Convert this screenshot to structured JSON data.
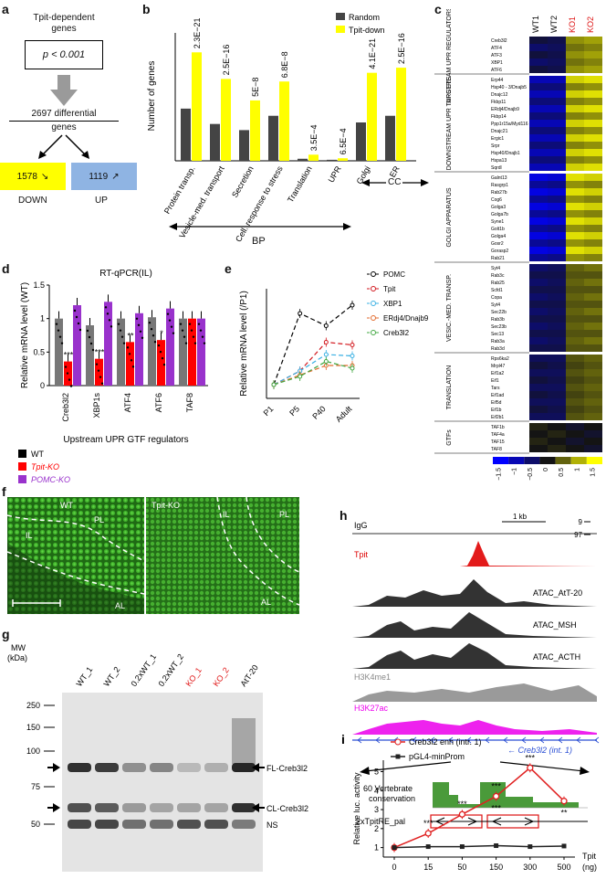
{
  "panel_a": {
    "letter": "a",
    "title_line1": "Tpit-dependent",
    "title_line2": "genes",
    "pvalue": "p < 0.001",
    "count_line1": "2697 differential",
    "count_line2": "genes",
    "down_value": "1578",
    "down_label": "DOWN",
    "up_value": "1119",
    "up_label": "UP",
    "colors": {
      "down": "#ffff00",
      "up": "#8fb4e3"
    }
  },
  "panel_b": {
    "letter": "b",
    "bp_label": "BP",
    "cc_label": "CC",
    "chart_data": {
      "type": "bar",
      "ylabel": "Number of genes",
      "categories": [
        "Protein transp.",
        "Vesicle-med. transport",
        "Secretion",
        "Cell. response to stress",
        "Translation",
        "UPR",
        "Golgi",
        "ER"
      ],
      "series": [
        {
          "name": "Random",
          "color": "#444444",
          "values": [
            102,
            72,
            60,
            88,
            4,
            2,
            75,
            88
          ]
        },
        {
          "name": "Tpit-down",
          "color": "#ffff00",
          "values": [
            212,
            160,
            118,
            155,
            12,
            5,
            172,
            182
          ]
        }
      ],
      "pvalues": [
        "2.3E−21",
        "2.5E−16",
        "5E−8",
        "6.8E−8",
        "3.5E−4",
        "6.5E−4",
        "4.1E−21",
        "2.5E−16"
      ],
      "ylim": [
        0,
        250
      ]
    }
  },
  "panel_c": {
    "letter": "c",
    "columns": [
      "WT1",
      "WT2",
      "KO1",
      "KO2"
    ],
    "groups": [
      {
        "label": "UPSTREAM UPR REGULATORS",
        "genes": [
          "Creb3l2",
          "ATF4",
          "ATF3",
          "XBP1",
          "ATF6"
        ]
      },
      {
        "label": "DOWNSTREAM UPR TARGETS",
        "genes": [
          "Erp44",
          "Hsp40 - 3/Dnajb5",
          "Dnajc12",
          "Fkbp11",
          "ERdj4/Dnajb9",
          "Fkbp14",
          "Ppp1r15a/Myd116",
          "Dnajc21",
          "Ergic1",
          "Srpr",
          "Hsp40/Dnajb1",
          "Hspa13",
          "Sqrdl"
        ]
      },
      {
        "label": "GOLGI APPARATUS",
        "genes": [
          "Galnt13",
          "Rasgrp1",
          "Rab27b",
          "Cog6",
          "Golga3",
          "Golga7b",
          "Syne1",
          "Golt1b",
          "Golga4",
          "Gosr2",
          "Gorasp2",
          "Rab21"
        ]
      },
      {
        "label": "VESIC.-MED. TRANSP.",
        "genes": [
          "Syt4",
          "Rab3c",
          "Rab25",
          "Scfd1",
          "Copa",
          "Syt4",
          "Sec22b",
          "Rab3b",
          "Sec23b",
          "Sec13",
          "Rab3a",
          "Rab3d"
        ]
      },
      {
        "label": "TRANSLATION",
        "genes": [
          "Rps6ka2",
          "Mrpl47",
          "Eif1a2",
          "Eif1",
          "Tars",
          "Eif1ad",
          "Eif5d",
          "Eif1b",
          "Eif2b1"
        ]
      },
      {
        "label": "GTFs",
        "genes": [
          "TAF1b",
          "TAF4a",
          "TAF15",
          "TAF8"
        ]
      }
    ],
    "colorbar_ticks": [
      "−1.5",
      "−1",
      "−0.5",
      "0",
      "0.5",
      "1",
      "1.5"
    ]
  },
  "panel_d": {
    "letter": "d",
    "title": "RT-qPCR(IL)",
    "chart_data": {
      "type": "bar",
      "ylabel": "Relative mRNA level (WT)",
      "xlabel": "Upstream UPR GTF regulators",
      "categories": [
        "Creb3l2",
        "XBP1s",
        "ATF4",
        "ATF6",
        "TAF8"
      ],
      "series": [
        {
          "name": "WT",
          "color": "#000000",
          "values": [
            1.0,
            0.9,
            1.0,
            1.02,
            1.0
          ]
        },
        {
          "name": "Tpit-KO",
          "color": "#ff0000",
          "values": [
            0.36,
            0.4,
            0.65,
            0.68,
            1.0
          ]
        },
        {
          "name": "POMC-KO",
          "color": "#9932cc",
          "values": [
            1.2,
            1.25,
            1.08,
            1.15,
            1.0
          ]
        }
      ],
      "ylim": [
        0,
        1.5
      ],
      "yticks": [
        "0",
        "0.5",
        "1",
        "1.5"
      ],
      "significance": [
        "***",
        "***",
        "**",
        "*",
        ""
      ]
    }
  },
  "panel_e": {
    "letter": "e",
    "chart_data": {
      "type": "line",
      "ylabel": "Relative mRNA level (/P1)",
      "categories": [
        "P1",
        "P5",
        "P40",
        "Adult"
      ],
      "yticks": [
        "0",
        "2",
        "4",
        "6",
        "8"
      ],
      "ylim": [
        0,
        8
      ],
      "series": [
        {
          "name": "POMC",
          "color": "#000000",
          "values": [
            1,
            6.2,
            5.3,
            6.8
          ]
        },
        {
          "name": "Tpit",
          "color": "#d2161c",
          "values": [
            1,
            2.0,
            4.1,
            3.9
          ]
        },
        {
          "name": "XBP1",
          "color": "#3ab0e3",
          "values": [
            1,
            2.0,
            3.2,
            3.1
          ]
        },
        {
          "name": "ERdj4/Dnajb9",
          "color": "#e26a2c",
          "values": [
            1,
            1.7,
            2.4,
            2.4
          ]
        },
        {
          "name": "Creb3l2",
          "color": "#43a843",
          "values": [
            1,
            1.6,
            2.7,
            2.2
          ]
        }
      ]
    }
  },
  "panel_f": {
    "letter": "f",
    "left": {
      "wt": "WT",
      "pl": "PL",
      "il": "IL",
      "al": "AL"
    },
    "right": {
      "title": "Tpit-KO",
      "il": "IL",
      "pl": "PL",
      "al": "AL"
    }
  },
  "panel_g": {
    "letter": "g",
    "mw_label_1": "MW",
    "mw_label_2": "(kDa)",
    "lanes": [
      {
        "label": "WT_1",
        "red": false
      },
      {
        "label": "WT_2",
        "red": false
      },
      {
        "label": "0.2xWT_1",
        "red": false
      },
      {
        "label": "0.2xWT_2",
        "red": false
      },
      {
        "label": "KO_1",
        "red": true
      },
      {
        "label": "KO_2",
        "red": true
      },
      {
        "label": "AtT-20",
        "red": false
      }
    ],
    "mw_ticks": [
      "250",
      "150",
      "100",
      "75",
      "50"
    ],
    "bands": [
      "FL-Creb3l2",
      "CL-Creb3l2",
      "NS"
    ]
  },
  "panel_h": {
    "letter": "h",
    "tracks": [
      "IgG",
      "Tpit",
      "ATAC_AtT-20",
      "ATAC_MSH",
      "ATAC_ACTH",
      "H3K4me1",
      "H3K27ac"
    ],
    "scale": "1 kb",
    "ymax_top": "9",
    "ymax_bottom": "97",
    "gene_label": "← Creb3l2 (int. 1)",
    "conservation_label_1": "60 Vertebrate",
    "conservation_label_2": "conservation",
    "tpitre_label": "2xTpitRE_pal"
  },
  "panel_i": {
    "letter": "i",
    "chart_data": {
      "type": "line",
      "ylabel": "Relative luc. activity",
      "xlabel": "Tpit",
      "xunit": "(ng)",
      "categories": [
        "0",
        "15",
        "50",
        "150",
        "300",
        "500"
      ],
      "yticks": [
        "1",
        "2",
        "3",
        "4",
        "5"
      ],
      "ylim": [
        0.5,
        5.6
      ],
      "series": [
        {
          "name": "Creb3l2 enh (intr. 1)",
          "color": "#e02020",
          "values": [
            1.0,
            1.75,
            2.75,
            3.7,
            5.2,
            3.45
          ]
        },
        {
          "name": "pGL4-minProm",
          "color": "#222222",
          "values": [
            1.0,
            1.05,
            1.05,
            1.1,
            1.05,
            1.08
          ]
        }
      ],
      "significance": [
        "",
        "***",
        "***",
        "***",
        "***",
        "**"
      ]
    }
  }
}
